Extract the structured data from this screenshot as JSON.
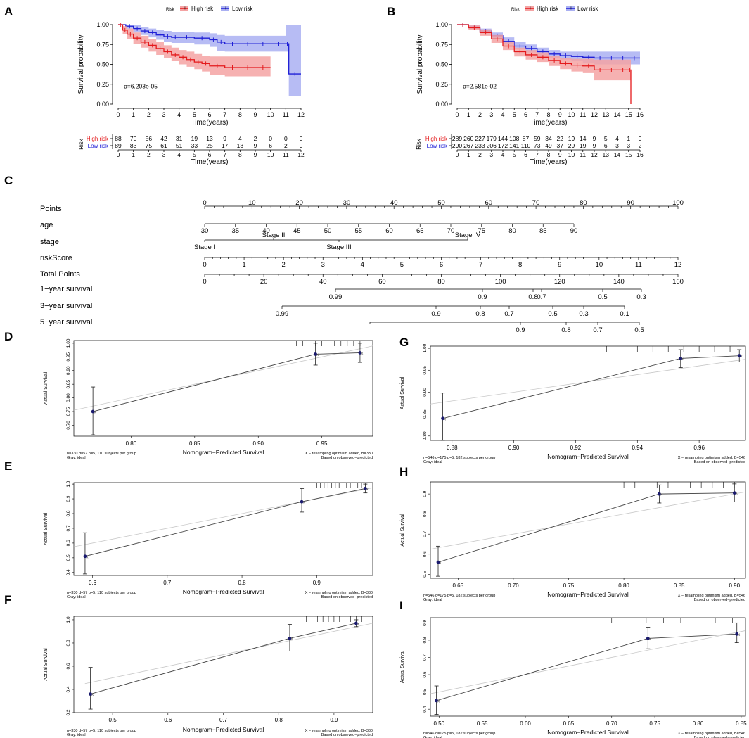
{
  "colors": {
    "high": "#e41a1c",
    "low": "#1f1fd6",
    "high_band": "#f4a3a3",
    "low_band": "#aab0f2",
    "calib_point": "#1a1a6e"
  },
  "chart_data": [
    {
      "panel": "A",
      "type": "line",
      "legend_title": "Risk",
      "legend": [
        "High risk",
        "Low risk"
      ],
      "xlabel": "Time(years)",
      "ylabel": "Survival probability",
      "xlim": [
        0,
        12
      ],
      "ylim": [
        0,
        1
      ],
      "xticks": [
        "0",
        "1",
        "2",
        "3",
        "4",
        "5",
        "6",
        "7",
        "8",
        "9",
        "10",
        "11",
        "12"
      ],
      "yticks": [
        "0.00",
        "0.25",
        "0.50",
        "0.75",
        "1.00"
      ],
      "pvalue": "p=6.203e-05",
      "series": [
        {
          "name": "High risk",
          "x": [
            0,
            0.3,
            0.6,
            1,
            1.5,
            2,
            2.5,
            3,
            3.5,
            4,
            4.5,
            5,
            5.5,
            6,
            7,
            8,
            9,
            10
          ],
          "y": [
            1,
            0.93,
            0.88,
            0.83,
            0.78,
            0.74,
            0.7,
            0.66,
            0.62,
            0.59,
            0.56,
            0.53,
            0.51,
            0.48,
            0.46,
            0.46,
            0.46,
            0.46
          ],
          "lo": [
            1,
            0.88,
            0.82,
            0.76,
            0.71,
            0.66,
            0.62,
            0.58,
            0.54,
            0.5,
            0.47,
            0.44,
            0.41,
            0.37,
            0.35,
            0.35,
            0.35,
            0.35
          ],
          "hi": [
            1,
            0.98,
            0.95,
            0.9,
            0.86,
            0.82,
            0.78,
            0.74,
            0.71,
            0.68,
            0.66,
            0.63,
            0.61,
            0.6,
            0.6,
            0.6,
            0.6,
            0.6
          ]
        },
        {
          "name": "Low risk",
          "x": [
            0,
            0.5,
            1,
            1.5,
            2,
            2.5,
            3,
            3.5,
            4,
            5,
            6,
            6.5,
            7,
            8,
            9,
            10,
            11,
            11.2,
            12
          ],
          "y": [
            1,
            0.98,
            0.95,
            0.92,
            0.9,
            0.87,
            0.85,
            0.84,
            0.84,
            0.83,
            0.81,
            0.78,
            0.76,
            0.76,
            0.76,
            0.76,
            0.76,
            0.38,
            0.38
          ],
          "lo": [
            1,
            0.95,
            0.9,
            0.87,
            0.84,
            0.81,
            0.78,
            0.77,
            0.77,
            0.75,
            0.72,
            0.67,
            0.66,
            0.66,
            0.66,
            0.66,
            0.66,
            0.1,
            0.1
          ],
          "hi": [
            1,
            1,
            1,
            0.97,
            0.95,
            0.93,
            0.92,
            0.91,
            0.91,
            0.9,
            0.89,
            0.87,
            0.86,
            0.86,
            0.86,
            0.86,
            1,
            1,
            1
          ]
        }
      ],
      "risk_table": {
        "title": "Risk",
        "rows": [
          {
            "name": "High risk",
            "counts": [
              "88",
              "70",
              "56",
              "42",
              "31",
              "19",
              "13",
              "9",
              "4",
              "2",
              "0",
              "0",
              "0"
            ]
          },
          {
            "name": "Low risk",
            "counts": [
              "89",
              "83",
              "75",
              "61",
              "51",
              "33",
              "25",
              "17",
              "13",
              "9",
              "6",
              "2",
              "0"
            ]
          }
        ]
      }
    },
    {
      "panel": "B",
      "type": "line",
      "legend_title": "Risk",
      "legend": [
        "High risk",
        "Low risk"
      ],
      "xlabel": "Time(years)",
      "ylabel": "Survival probability",
      "xlim": [
        0,
        16
      ],
      "ylim": [
        0,
        1
      ],
      "xticks": [
        "0",
        "1",
        "2",
        "3",
        "4",
        "5",
        "6",
        "7",
        "8",
        "9",
        "10",
        "11",
        "12",
        "13",
        "14",
        "15",
        "16"
      ],
      "yticks": [
        "0.00",
        "0.25",
        "0.50",
        "0.75",
        "1.00"
      ],
      "pvalue": "p=2.581e-02",
      "series": [
        {
          "name": "High risk",
          "x": [
            0,
            1,
            2,
            3,
            4,
            5,
            6,
            7,
            8,
            9,
            10,
            11,
            12,
            13,
            14,
            15,
            15.2
          ],
          "y": [
            1,
            0.96,
            0.9,
            0.82,
            0.73,
            0.66,
            0.62,
            0.59,
            0.55,
            0.51,
            0.49,
            0.48,
            0.43,
            0.43,
            0.43,
            0.43,
            0
          ],
          "lo": [
            1,
            0.93,
            0.86,
            0.77,
            0.68,
            0.6,
            0.56,
            0.53,
            0.48,
            0.44,
            0.41,
            0.39,
            0.3,
            0.3,
            0.3,
            0.3,
            0
          ],
          "hi": [
            1,
            0.99,
            0.94,
            0.87,
            0.78,
            0.71,
            0.68,
            0.65,
            0.61,
            0.58,
            0.57,
            0.57,
            0.56,
            0.56,
            0.56,
            0.56,
            0.56
          ]
        },
        {
          "name": "Low risk",
          "x": [
            0,
            1,
            2,
            3,
            4,
            5,
            6,
            7,
            8,
            9,
            10,
            11,
            12,
            13,
            14,
            15,
            16
          ],
          "y": [
            1,
            0.97,
            0.92,
            0.86,
            0.79,
            0.73,
            0.7,
            0.66,
            0.63,
            0.61,
            0.6,
            0.59,
            0.58,
            0.58,
            0.58,
            0.58,
            0.58
          ],
          "lo": [
            1,
            0.95,
            0.89,
            0.82,
            0.75,
            0.69,
            0.65,
            0.61,
            0.58,
            0.56,
            0.54,
            0.52,
            0.5,
            0.5,
            0.5,
            0.5,
            0.5
          ],
          "hi": [
            1,
            0.99,
            0.95,
            0.9,
            0.84,
            0.78,
            0.75,
            0.71,
            0.68,
            0.66,
            0.66,
            0.66,
            0.66,
            0.66,
            0.66,
            0.66,
            0.66
          ]
        }
      ],
      "risk_table": {
        "title": "Risk",
        "rows": [
          {
            "name": "High risk",
            "counts": [
              "289",
              "260",
              "227",
              "179",
              "144",
              "108",
              "87",
              "59",
              "34",
              "22",
              "19",
              "14",
              "9",
              "5",
              "4",
              "1",
              "0"
            ]
          },
          {
            "name": "Low risk",
            "counts": [
              "290",
              "267",
              "233",
              "206",
              "172",
              "141",
              "110",
              "73",
              "49",
              "37",
              "29",
              "19",
              "9",
              "6",
              "3",
              "3",
              "2"
            ]
          }
        ]
      }
    },
    {
      "panel": "D",
      "type": "line",
      "subtype": "calibration",
      "ylabel": "Actual Survival",
      "xlabel": "Nomogram−Predicted Survival",
      "xlim": [
        0.755,
        0.99
      ],
      "ylim": [
        0.66,
        1.01
      ],
      "xticks": [
        0.8,
        0.85,
        0.9,
        0.95
      ],
      "xtick_labels": [
        "0.80",
        "0.85",
        "0.90",
        "0.95"
      ],
      "yticks": [
        0.7,
        0.75,
        0.8,
        0.85,
        0.9,
        0.95,
        1.0
      ],
      "ytick_labels": [
        "0.70",
        "0.75",
        "0.80",
        "0.85",
        "0.90",
        "0.95",
        "1.00"
      ],
      "ideal": [
        0.7,
        1.0
      ],
      "points": [
        {
          "x": 0.77,
          "y": 0.75,
          "lo": 0.665,
          "hi": 0.84
        },
        {
          "x": 0.945,
          "y": 0.96,
          "lo": 0.92,
          "hi": 1.0
        },
        {
          "x": 0.98,
          "y": 0.965,
          "lo": 0.93,
          "hi": 1.0
        }
      ],
      "rug": [
        0.93,
        0.935,
        0.94,
        0.945,
        0.95,
        0.955,
        0.96,
        0.965,
        0.97,
        0.975,
        0.98
      ],
      "footer_left": "n=330 d=57 p=5, 110 subjects per group",
      "footer_left2": "Gray: ideal",
      "footer_right": "X − resampling optimism added, B=330",
      "footer_right2": "Based on observed−predicted"
    },
    {
      "panel": "G",
      "type": "line",
      "subtype": "calibration",
      "ylabel": "Actual Survival",
      "xlabel": "Nomogram−Predicted Survival",
      "xlim": [
        0.873,
        0.975
      ],
      "ylim": [
        0.79,
        1.005
      ],
      "xticks": [
        0.88,
        0.9,
        0.92,
        0.94,
        0.96
      ],
      "xtick_labels": [
        "0.88",
        "0.90",
        "0.92",
        "0.94",
        "0.96"
      ],
      "yticks": [
        0.8,
        0.85,
        0.9,
        0.95,
        1.0
      ],
      "ytick_labels": [
        "0.80",
        "0.85",
        "0.90",
        "0.95",
        "1.00"
      ],
      "ideal": [
        0.85,
        1.0
      ],
      "points": [
        {
          "x": 0.877,
          "y": 0.84,
          "lo": 0.79,
          "hi": 0.898
        },
        {
          "x": 0.954,
          "y": 0.977,
          "lo": 0.956,
          "hi": 0.997
        },
        {
          "x": 0.973,
          "y": 0.983,
          "lo": 0.969,
          "hi": 0.997
        }
      ],
      "rug": [
        0.93,
        0.935,
        0.94,
        0.945,
        0.95,
        0.955,
        0.96,
        0.965,
        0.97
      ],
      "footer_left": "n=546 d=175 p=5, 182 subjects per group",
      "footer_left2": "Gray: ideal",
      "footer_right": "X − resampling optimism added, B=546",
      "footer_right2": "Based on observed−predicted"
    },
    {
      "panel": "E",
      "type": "line",
      "subtype": "calibration",
      "ylabel": "Actual Survival",
      "xlabel": "Nomogram−Predicted Survival",
      "xlim": [
        0.575,
        0.975
      ],
      "ylim": [
        0.38,
        1.01
      ],
      "xticks": [
        0.6,
        0.7,
        0.8,
        0.9
      ],
      "xtick_labels": [
        "0.6",
        "0.7",
        "0.8",
        "0.9"
      ],
      "yticks": [
        0.4,
        0.5,
        0.6,
        0.7,
        0.8,
        0.9,
        1.0
      ],
      "ytick_labels": [
        "0.4",
        "0.5",
        "0.6",
        "0.7",
        "0.8",
        "0.9",
        "1.0"
      ],
      "ideal": [
        0.55,
        1.0
      ],
      "points": [
        {
          "x": 0.59,
          "y": 0.51,
          "lo": 0.39,
          "hi": 0.67
        },
        {
          "x": 0.88,
          "y": 0.88,
          "lo": 0.81,
          "hi": 0.97
        },
        {
          "x": 0.965,
          "y": 0.97,
          "lo": 0.94,
          "hi": 1.0
        }
      ],
      "rug": [
        0.9,
        0.905,
        0.91,
        0.915,
        0.92,
        0.925,
        0.93,
        0.935,
        0.94,
        0.945,
        0.95,
        0.955,
        0.96,
        0.965,
        0.97
      ],
      "footer_left": "n=330 d=57 p=5, 110 subjects per group",
      "footer_left2": "Gray: ideal",
      "footer_right": "X − resampling optimism added, B=330",
      "footer_right2": "Based on observed−predicted"
    },
    {
      "panel": "H",
      "type": "line",
      "subtype": "calibration",
      "ylabel": "Actual Survival",
      "xlabel": "Nomogram−Predicted Survival",
      "xlim": [
        0.625,
        0.91
      ],
      "ylim": [
        0.48,
        0.96
      ],
      "xticks": [
        0.65,
        0.7,
        0.75,
        0.8,
        0.85,
        0.9
      ],
      "xtick_labels": [
        "0.65",
        "0.70",
        "0.75",
        "0.80",
        "0.85",
        "0.90"
      ],
      "yticks": [
        0.5,
        0.6,
        0.7,
        0.8,
        0.9
      ],
      "ytick_labels": [
        "0.5",
        "0.6",
        "0.7",
        "0.8",
        "0.9"
      ],
      "ideal": [
        0.6,
        0.95
      ],
      "points": [
        {
          "x": 0.632,
          "y": 0.56,
          "lo": 0.49,
          "hi": 0.64
        },
        {
          "x": 0.832,
          "y": 0.9,
          "lo": 0.855,
          "hi": 0.945
        },
        {
          "x": 0.9,
          "y": 0.905,
          "lo": 0.86,
          "hi": 0.95
        }
      ],
      "rug": [
        0.8,
        0.81,
        0.82,
        0.83,
        0.84,
        0.85,
        0.86,
        0.87,
        0.88,
        0.89,
        0.9
      ],
      "footer_left": "n=546 d=175 p=5, 182 subjects per group",
      "footer_left2": "Gray: ideal",
      "footer_right": "X − resampling optimism added, B=546",
      "footer_right2": "Based on observed−predicted"
    },
    {
      "panel": "F",
      "type": "line",
      "subtype": "calibration",
      "ylabel": "Actual Survival",
      "xlabel": "Nomogram−Predicted Survival",
      "xlim": [
        0.43,
        0.97
      ],
      "ylim": [
        0.2,
        1.03
      ],
      "xticks": [
        0.5,
        0.6,
        0.7,
        0.8,
        0.9
      ],
      "xtick_labels": [
        "0.5",
        "0.6",
        "0.7",
        "0.8",
        "0.9"
      ],
      "yticks": [
        0.2,
        0.4,
        0.6,
        0.8,
        1.0
      ],
      "ytick_labels": [
        "0.2",
        "0.4",
        "0.6",
        "0.8",
        "1.0"
      ],
      "ideal": [
        0.45,
        1.0
      ],
      "points": [
        {
          "x": 0.46,
          "y": 0.36,
          "lo": 0.23,
          "hi": 0.59
        },
        {
          "x": 0.82,
          "y": 0.84,
          "lo": 0.73,
          "hi": 0.96
        },
        {
          "x": 0.94,
          "y": 0.97,
          "lo": 0.94,
          "hi": 1.0
        }
      ],
      "rug": [
        0.85,
        0.86,
        0.87,
        0.88,
        0.89,
        0.9,
        0.91,
        0.92,
        0.93,
        0.94,
        0.95
      ],
      "footer_left": "n=330 d=57 p=5, 110 subjects per group",
      "footer_left2": "Gray: ideal",
      "footer_right": "X − resampling optimism added, B=330",
      "footer_right2": "Based on observed−predicted"
    },
    {
      "panel": "I",
      "type": "line",
      "subtype": "calibration",
      "ylabel": "Actual Survival",
      "xlabel": "Nomogram−Predicted Survival",
      "xlim": [
        0.49,
        0.855
      ],
      "ylim": [
        0.36,
        0.93
      ],
      "xticks": [
        0.5,
        0.55,
        0.6,
        0.65,
        0.7,
        0.75,
        0.8,
        0.85
      ],
      "xtick_labels": [
        "0.50",
        "0.55",
        "0.60",
        "0.65",
        "0.70",
        "0.75",
        "0.80",
        "0.85"
      ],
      "yticks": [
        0.4,
        0.5,
        0.6,
        0.7,
        0.8,
        0.9
      ],
      "ytick_labels": [
        "0.4",
        "0.5",
        "0.6",
        "0.7",
        "0.8",
        "0.9"
      ],
      "ideal": [
        0.45,
        0.9
      ],
      "points": [
        {
          "x": 0.497,
          "y": 0.45,
          "lo": 0.37,
          "hi": 0.535
        },
        {
          "x": 0.742,
          "y": 0.81,
          "lo": 0.75,
          "hi": 0.875
        },
        {
          "x": 0.845,
          "y": 0.835,
          "lo": 0.785,
          "hi": 0.9
        }
      ],
      "rug": [
        0.7,
        0.72,
        0.74,
        0.76,
        0.78,
        0.8,
        0.82,
        0.84
      ],
      "footer_left": "n=546 d=175 p=5, 182 subjects per group",
      "footer_left2": "Gray: ideal",
      "footer_right": "X − resampling optimism added, B=546",
      "footer_right2": "Based on observed−predicted"
    }
  ],
  "nomogram": {
    "panel": "C",
    "rows": [
      {
        "label": "Points",
        "min": 0,
        "max": 100,
        "ticks": [
          "0",
          "10",
          "20",
          "30",
          "40",
          "50",
          "60",
          "70",
          "80",
          "90",
          "100"
        ]
      },
      {
        "label": "age",
        "min": 30,
        "max": 90,
        "ticks": [
          "30",
          "35",
          "40",
          "45",
          "50",
          "55",
          "60",
          "65",
          "70",
          "75",
          "80",
          "85",
          "90"
        ]
      },
      {
        "label": "stage",
        "categories": [
          "Stage I",
          "Stage II",
          "Stage III",
          "Stage IV"
        ]
      },
      {
        "label": "riskScore",
        "min": 0,
        "max": 12,
        "ticks": [
          "0",
          "1",
          "2",
          "3",
          "4",
          "5",
          "6",
          "7",
          "8",
          "9",
          "10",
          "11",
          "12"
        ]
      },
      {
        "label": "Total Points",
        "min": 0,
        "max": 160,
        "ticks": [
          "0",
          "20",
          "40",
          "60",
          "80",
          "100",
          "120",
          "140",
          "160"
        ]
      },
      {
        "label": "1−year survival",
        "ticks": [
          "0.99",
          "0.9",
          "0.8",
          "0.7",
          "0.5",
          "0.3"
        ]
      },
      {
        "label": "3−year survival",
        "ticks": [
          "0.99",
          "0.9",
          "0.8",
          "0.7",
          "0.5",
          "0.3",
          "0.1"
        ]
      },
      {
        "label": "5−year survival",
        "ticks": [
          "0.9",
          "0.8",
          "0.7",
          "0.5"
        ]
      }
    ]
  }
}
